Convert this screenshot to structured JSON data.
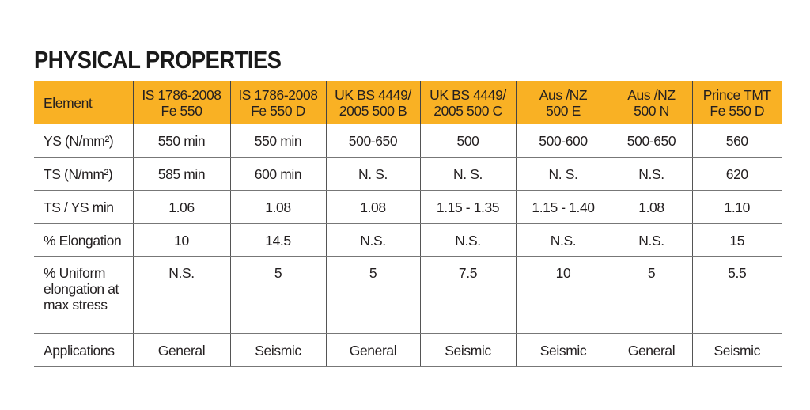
{
  "title": "PHYSICAL PROPERTIES",
  "table": {
    "headers": [
      "Element",
      "IS 1786-2008\nFe 550",
      "IS 1786-2008\nFe 550 D",
      "UK BS 4449/\n2005 500 B",
      "UK BS 4449/\n2005 500 C",
      "Aus /NZ\n500 E",
      "Aus /NZ\n500 N",
      "Prince TMT\nFe 550 D"
    ],
    "rows": [
      {
        "label": "YS (N/mm²)",
        "values": [
          "550 min",
          "550 min",
          "500-650",
          "500",
          "500-600",
          "500-650",
          "560"
        ]
      },
      {
        "label": "TS (N/mm²)",
        "values": [
          "585 min",
          "600 min",
          "N. S.",
          "N. S.",
          "N. S.",
          "N.S.",
          "620"
        ]
      },
      {
        "label": "TS / YS min",
        "values": [
          "1.06",
          "1.08",
          "1.08",
          "1.15 - 1.35",
          "1.15 - 1.40",
          "1.08",
          "1.10"
        ]
      },
      {
        "label": "% Elongation",
        "values": [
          "10",
          "14.5",
          "N.S.",
          "N.S.",
          "N.S.",
          "N.S.",
          "15"
        ]
      },
      {
        "label": "% Uniform elongation at max stress",
        "values": [
          "N.S.",
          "5",
          "5",
          "7.5",
          "10",
          "5",
          "5.5"
        ]
      },
      {
        "label": "Applications",
        "values": [
          "General",
          "Seismic",
          "General",
          "Seismic",
          "Seismic",
          "General",
          "Seismic"
        ]
      }
    ]
  },
  "colors": {
    "header_bg": "#f9b124"
  }
}
